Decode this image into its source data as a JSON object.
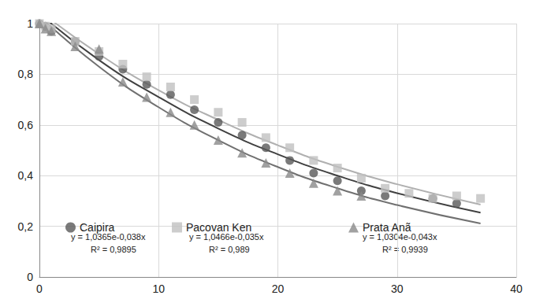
{
  "chart_data": {
    "type": "scatter",
    "grid": true,
    "xlim": [
      0,
      40
    ],
    "xticks": [
      0,
      10,
      20,
      30,
      40
    ],
    "ylim": [
      0,
      1
    ],
    "yticks": [
      0,
      {
        "value": 0.2,
        "label": "0,2"
      },
      {
        "value": 0.4,
        "label": "0,4"
      },
      {
        "value": 0.6,
        "label": "0,6"
      },
      {
        "value": 0.8,
        "label": "0,8"
      },
      1
    ],
    "series": [
      {
        "name": "Caipira",
        "color": "#595959",
        "marker": "circle",
        "equation": "y = 1,0365e-0,038x",
        "r2": "R² = 0,9895",
        "x": [
          0,
          0.5,
          1,
          3,
          5,
          7,
          9,
          11,
          13,
          15,
          17,
          19,
          21,
          23,
          25,
          27,
          29,
          33,
          35
        ],
        "values": [
          1.0,
          0.99,
          0.97,
          0.93,
          0.87,
          0.82,
          0.76,
          0.72,
          0.66,
          0.61,
          0.56,
          0.51,
          0.46,
          0.41,
          0.38,
          0.34,
          0.32,
          0.31,
          0.29
        ],
        "trend": {
          "color": "#404040",
          "x": [
            0,
            5,
            10,
            15,
            20,
            25,
            30,
            37
          ],
          "values": [
            1.04,
            0.856,
            0.71,
            0.586,
            0.484,
            0.4,
            0.331,
            0.254
          ]
        }
      },
      {
        "name": "Pacovan Ken",
        "color": "#c0c0c0",
        "marker": "square",
        "equation": "y = 1,0466e-0,035x",
        "r2": "R² = 0,989",
        "x": [
          0,
          0.5,
          1,
          3,
          5,
          7,
          9,
          11,
          13,
          15,
          17,
          19,
          21,
          23,
          25,
          27,
          29,
          31,
          33,
          35,
          37
        ],
        "values": [
          1.0,
          0.99,
          0.98,
          0.93,
          0.89,
          0.84,
          0.79,
          0.75,
          0.7,
          0.65,
          0.61,
          0.55,
          0.51,
          0.46,
          0.43,
          0.39,
          0.35,
          0.33,
          0.31,
          0.32,
          0.31
        ],
        "trend": {
          "color": "#b0b0b0",
          "x": [
            0,
            5,
            10,
            15,
            20,
            25,
            30,
            37
          ],
          "values": [
            1.05,
            0.88,
            0.737,
            0.62,
            0.52,
            0.435,
            0.366,
            0.286
          ]
        }
      },
      {
        "name": "Prata Anã",
        "color": "#8a8a8a",
        "marker": "triangle",
        "equation": "y = 1,0304e-0,043x",
        "r2": "R² = 0,9939",
        "x": [
          0,
          0.5,
          1,
          3,
          5,
          7,
          9,
          11,
          13,
          15,
          17,
          19,
          21,
          23,
          25,
          27
        ],
        "values": [
          1.0,
          0.98,
          0.97,
          0.91,
          0.9,
          0.77,
          0.71,
          0.65,
          0.6,
          0.54,
          0.49,
          0.45,
          0.41,
          0.37,
          0.34,
          0.32
        ],
        "trend": {
          "color": "#707070",
          "x": [
            0,
            5,
            10,
            15,
            20,
            25,
            30,
            37
          ],
          "values": [
            1.03,
            0.83,
            0.67,
            0.54,
            0.434,
            0.35,
            0.284,
            0.211
          ]
        }
      }
    ]
  }
}
